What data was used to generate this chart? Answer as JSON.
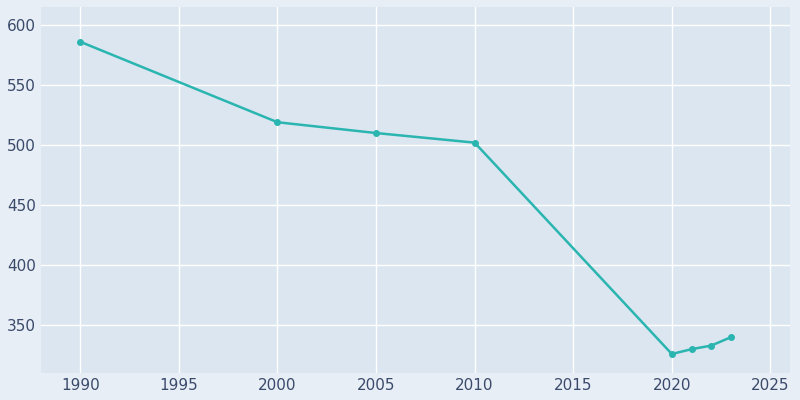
{
  "years": [
    1990,
    2000,
    2005,
    2010,
    2020,
    2021,
    2022,
    2023
  ],
  "population": [
    586,
    519,
    510,
    502,
    326,
    330,
    333,
    340
  ],
  "line_color": "#2ab5b0",
  "plot_bg_color": "#dce6f0",
  "fig_bg_color": "#e8eef5",
  "grid_color": "#ffffff",
  "tick_color": "#3a4a6b",
  "xlim": [
    1988,
    2026
  ],
  "ylim": [
    310,
    615
  ],
  "xticks": [
    1990,
    1995,
    2000,
    2005,
    2010,
    2015,
    2020,
    2025
  ],
  "yticks": [
    350,
    400,
    450,
    500,
    550,
    600
  ],
  "linewidth": 1.8,
  "marker": "o",
  "markersize": 4,
  "tick_labelsize": 11
}
